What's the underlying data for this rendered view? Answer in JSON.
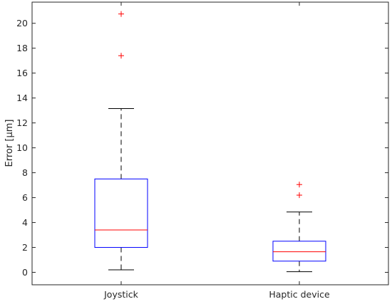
{
  "chart_data": {
    "type": "box",
    "title": "",
    "xlabel": "",
    "ylabel": "Error [μm]",
    "ylim": [
      -1,
      21.7
    ],
    "yticks": [
      0,
      2,
      4,
      6,
      8,
      10,
      12,
      14,
      16,
      18,
      20
    ],
    "grid": false,
    "categories": [
      "Joystick",
      "Haptic device"
    ],
    "boxes": [
      {
        "category": "Joystick",
        "whisker_low": 0.2,
        "q1": 2.0,
        "median": 3.4,
        "q3": 7.5,
        "whisker_high": 13.15,
        "outliers": [
          17.4,
          20.75
        ]
      },
      {
        "category": "Haptic device",
        "whisker_low": 0.05,
        "q1": 0.9,
        "median": 1.65,
        "q3": 2.5,
        "whisker_high": 4.85,
        "outliers": [
          6.2,
          7.05
        ]
      }
    ],
    "colors": {
      "box": "#0000ff",
      "median": "#ff0000",
      "whisker": "#000000",
      "outlier": "#ff0000",
      "axes": "#262626"
    }
  }
}
